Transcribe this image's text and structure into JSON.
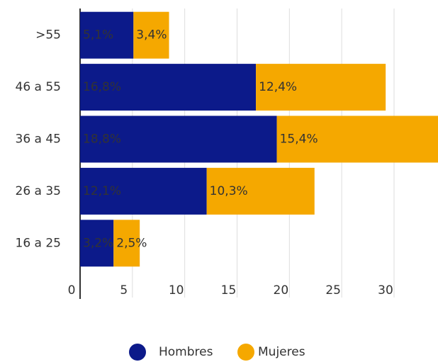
{
  "chart_data": {
    "type": "bar",
    "orientation": "horizontal",
    "stacked": true,
    "categories": [
      ">55",
      "46 a 55",
      "36 a 45",
      "26 a 35",
      "16 a 25"
    ],
    "series": [
      {
        "name": "Hombres",
        "color": "#0c1a8a",
        "values": [
          5.1,
          16.8,
          18.8,
          12.1,
          3.2
        ],
        "value_labels": [
          "5,1%",
          "16,8%",
          "18,8%",
          "12,1%",
          "3,2%"
        ]
      },
      {
        "name": "Mujeres",
        "color": "#f5a800",
        "values": [
          3.4,
          12.4,
          15.4,
          10.3,
          2.5
        ],
        "value_labels": [
          "3,4%",
          "12,4%",
          "15,4%",
          "10,3%",
          "2,5%"
        ]
      }
    ],
    "xlim": [
      0,
      34.2
    ],
    "xticks": [
      0,
      5,
      10,
      15,
      20,
      25,
      30
    ],
    "grid": true,
    "legend": "bottom"
  }
}
